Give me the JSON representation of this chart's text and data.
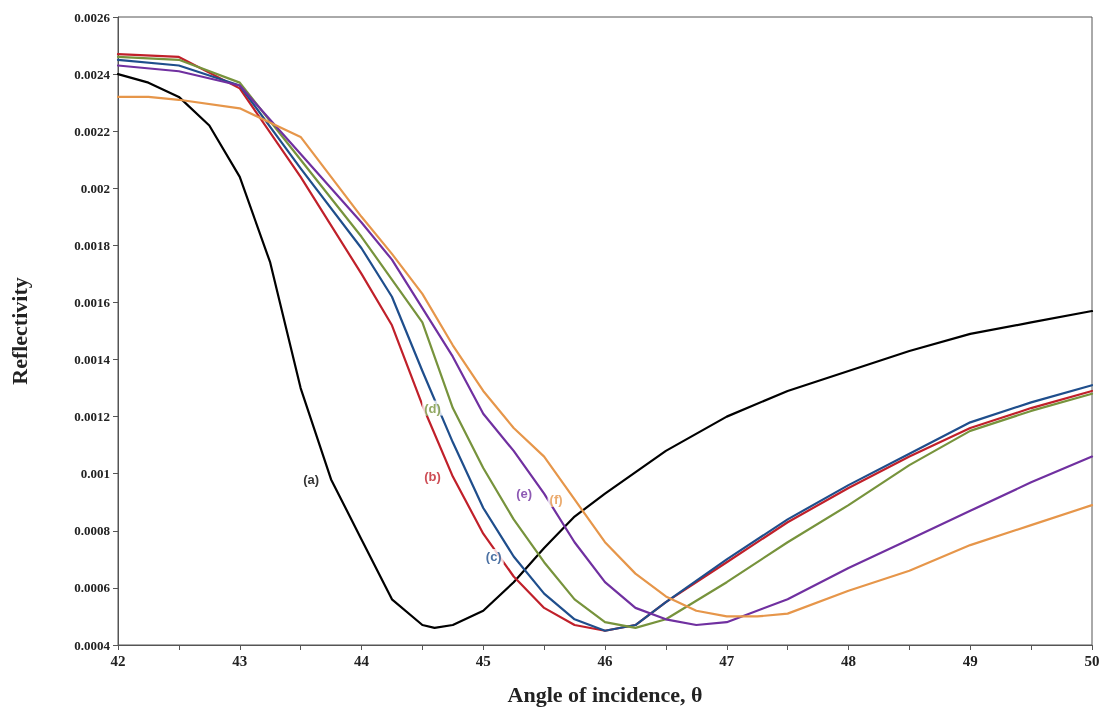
{
  "chart_data": {
    "type": "line",
    "xlabel": "Angle of incidence, θ",
    "ylabel": "Reflectivity",
    "xlim": [
      42,
      50
    ],
    "xticks": [
      42,
      {
        "value": 42.5,
        "label": null
      },
      43,
      {
        "value": 43.5,
        "label": null
      },
      44,
      {
        "value": 44.5,
        "label": null
      },
      45,
      {
        "value": 45.5,
        "label": null
      },
      46,
      {
        "value": 46.5,
        "label": null
      },
      47,
      {
        "value": 47.5,
        "label": null
      },
      48,
      {
        "value": 48.5,
        "label": null
      },
      49,
      {
        "value": 49.5,
        "label": null
      },
      50
    ],
    "ylim": [
      0.0004,
      0.0026
    ],
    "yticks": [
      0.0004,
      0.0006,
      0.0008,
      0.001,
      0.0012,
      0.0014,
      0.0016,
      0.0018,
      0.002,
      0.0022,
      0.0024,
      0.0026
    ],
    "grid": false,
    "marker": "none",
    "line_style": "solid",
    "series": [
      {
        "color": "#000000",
        "x": [
          42,
          42.25,
          42.5,
          42.75,
          43,
          43.25,
          43.5,
          43.75,
          44,
          44.25,
          44.5,
          44.6,
          44.75,
          45,
          45.25,
          45.5,
          45.75,
          46,
          46.5,
          47,
          47.5,
          48,
          48.5,
          49,
          49.5,
          50
        ],
        "values": [
          0.0024,
          0.00237,
          0.00232,
          0.00222,
          0.00204,
          0.00174,
          0.0013,
          0.00098,
          0.00077,
          0.00056,
          0.00047,
          0.00046,
          0.00047,
          0.00052,
          0.00062,
          0.00074,
          0.00085,
          0.00093,
          0.00108,
          0.0012,
          0.00129,
          0.00136,
          0.00143,
          0.00149,
          0.00153,
          0.00157
        ]
      },
      {
        "color": "#c0202a",
        "x": [
          42,
          42.5,
          43,
          43.5,
          44,
          44.25,
          44.5,
          44.75,
          45,
          45.25,
          45.5,
          45.75,
          46,
          46.25,
          46.5,
          47,
          47.5,
          48,
          48.5,
          49,
          49.5,
          50
        ],
        "values": [
          0.00247,
          0.00246,
          0.00235,
          0.00204,
          0.0017,
          0.00152,
          0.00124,
          0.00099,
          0.00079,
          0.00064,
          0.00053,
          0.00047,
          0.00045,
          0.00047,
          0.00055,
          0.00069,
          0.00083,
          0.00095,
          0.00106,
          0.00116,
          0.00123,
          0.00129
        ]
      },
      {
        "color": "#1f4e8c",
        "x": [
          42,
          42.5,
          43,
          43.5,
          44,
          44.25,
          44.5,
          44.75,
          45,
          45.25,
          45.5,
          45.75,
          46,
          46.25,
          46.5,
          47,
          47.5,
          48,
          48.5,
          49,
          49.5,
          50
        ],
        "values": [
          0.00245,
          0.00243,
          0.00236,
          0.00207,
          0.00179,
          0.00162,
          0.00136,
          0.00111,
          0.00088,
          0.00071,
          0.00058,
          0.00049,
          0.00045,
          0.00047,
          0.00055,
          0.0007,
          0.00084,
          0.00096,
          0.00107,
          0.00118,
          0.00125,
          0.00131
        ]
      },
      {
        "color": "#77933c",
        "x": [
          42,
          42.5,
          43,
          43.5,
          44,
          44.25,
          44.5,
          44.75,
          45,
          45.25,
          45.5,
          45.75,
          46,
          46.25,
          46.5,
          47,
          47.5,
          48,
          48.5,
          49,
          49.5,
          50
        ],
        "values": [
          0.00246,
          0.00245,
          0.00237,
          0.0021,
          0.00183,
          0.00168,
          0.00153,
          0.00123,
          0.00102,
          0.00084,
          0.00069,
          0.00056,
          0.00048,
          0.00046,
          0.00049,
          0.00062,
          0.00076,
          0.00089,
          0.00103,
          0.00115,
          0.00122,
          0.00128
        ]
      },
      {
        "color": "#7030a0",
        "x": [
          42,
          42.5,
          43,
          43.5,
          44,
          44.25,
          44.5,
          44.75,
          45,
          45.25,
          45.5,
          45.75,
          46,
          46.25,
          46.5,
          46.75,
          47,
          47.5,
          48,
          48.5,
          49,
          49.5,
          50
        ],
        "values": [
          0.00243,
          0.00241,
          0.00236,
          0.00212,
          0.00188,
          0.00175,
          0.00158,
          0.00141,
          0.00121,
          0.00108,
          0.00093,
          0.00076,
          0.00062,
          0.00053,
          0.00049,
          0.00047,
          0.00048,
          0.00056,
          0.00067,
          0.00077,
          0.00087,
          0.00097,
          0.00106
        ]
      },
      {
        "color": "#e6964a",
        "x": [
          42,
          42.25,
          42.5,
          43,
          43.5,
          44,
          44.25,
          44.5,
          44.75,
          45,
          45.25,
          45.5,
          45.75,
          46,
          46.25,
          46.5,
          46.75,
          47,
          47.25,
          47.5,
          48,
          48.5,
          49,
          49.5,
          50
        ],
        "values": [
          0.00232,
          0.00232,
          0.00231,
          0.00228,
          0.00218,
          0.0019,
          0.00177,
          0.00163,
          0.00145,
          0.00129,
          0.00116,
          0.00106,
          0.00091,
          0.00076,
          0.00065,
          0.00057,
          0.00052,
          0.0005,
          0.0005,
          0.00051,
          0.00059,
          0.00066,
          0.00075,
          0.00082,
          0.00089
        ]
      }
    ],
    "annotations": [
      {
        "text": "(a)",
        "x": 43.75,
        "y": 0.00098
      },
      {
        "text": "(b)",
        "x": 44.75,
        "y": 0.00099
      },
      {
        "text": "(c)",
        "x": 45.25,
        "y": 0.00071
      },
      {
        "text": "(d)",
        "x": 44.75,
        "y": 0.00123
      },
      {
        "text": "(e)",
        "x": 45.5,
        "y": 0.00093
      },
      {
        "text": "(f)",
        "x": 45.75,
        "y": 0.00091
      }
    ]
  }
}
